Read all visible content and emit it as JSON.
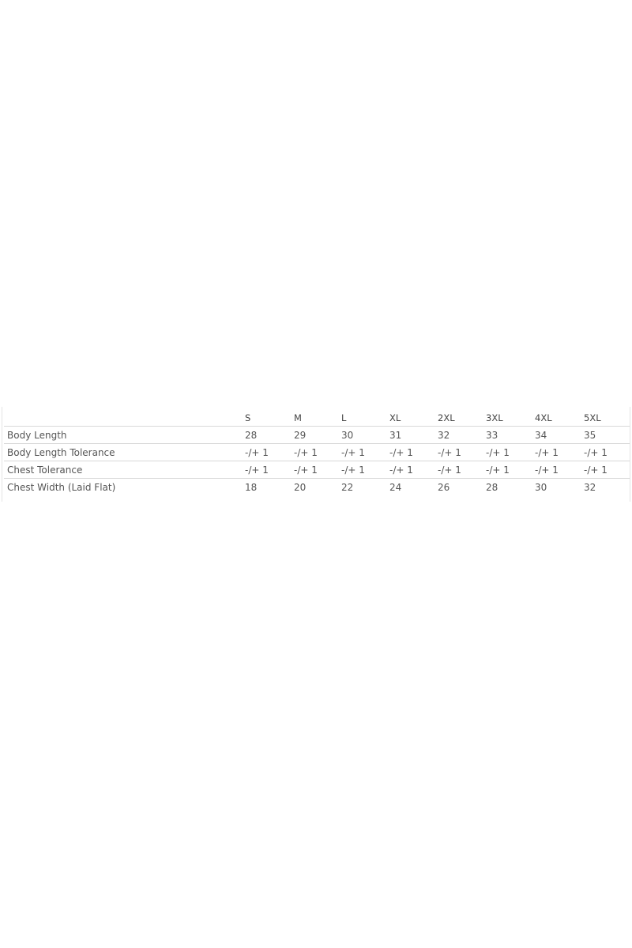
{
  "table": {
    "headers": [
      "",
      "S",
      "M",
      "L",
      "XL",
      "2XL",
      "3XL",
      "4XL",
      "5XL"
    ],
    "rows": [
      [
        "Body Length",
        "28",
        "29",
        "30",
        "31",
        "32",
        "33",
        "34",
        "35"
      ],
      [
        "Body Length Tolerance",
        "-/+ 1",
        "-/+ 1",
        "-/+ 1",
        "-/+ 1",
        "-/+ 1",
        "-/+ 1",
        "-/+ 1",
        "-/+ 1"
      ],
      [
        "Chest Tolerance",
        "-/+ 1",
        "-/+ 1",
        "-/+ 1",
        "-/+ 1",
        "-/+ 1",
        "-/+ 1",
        "-/+ 1",
        "-/+ 1"
      ],
      [
        "Chest Width (Laid Flat)",
        "18",
        "20",
        "22",
        "24",
        "26",
        "28",
        "30",
        "32"
      ]
    ]
  }
}
